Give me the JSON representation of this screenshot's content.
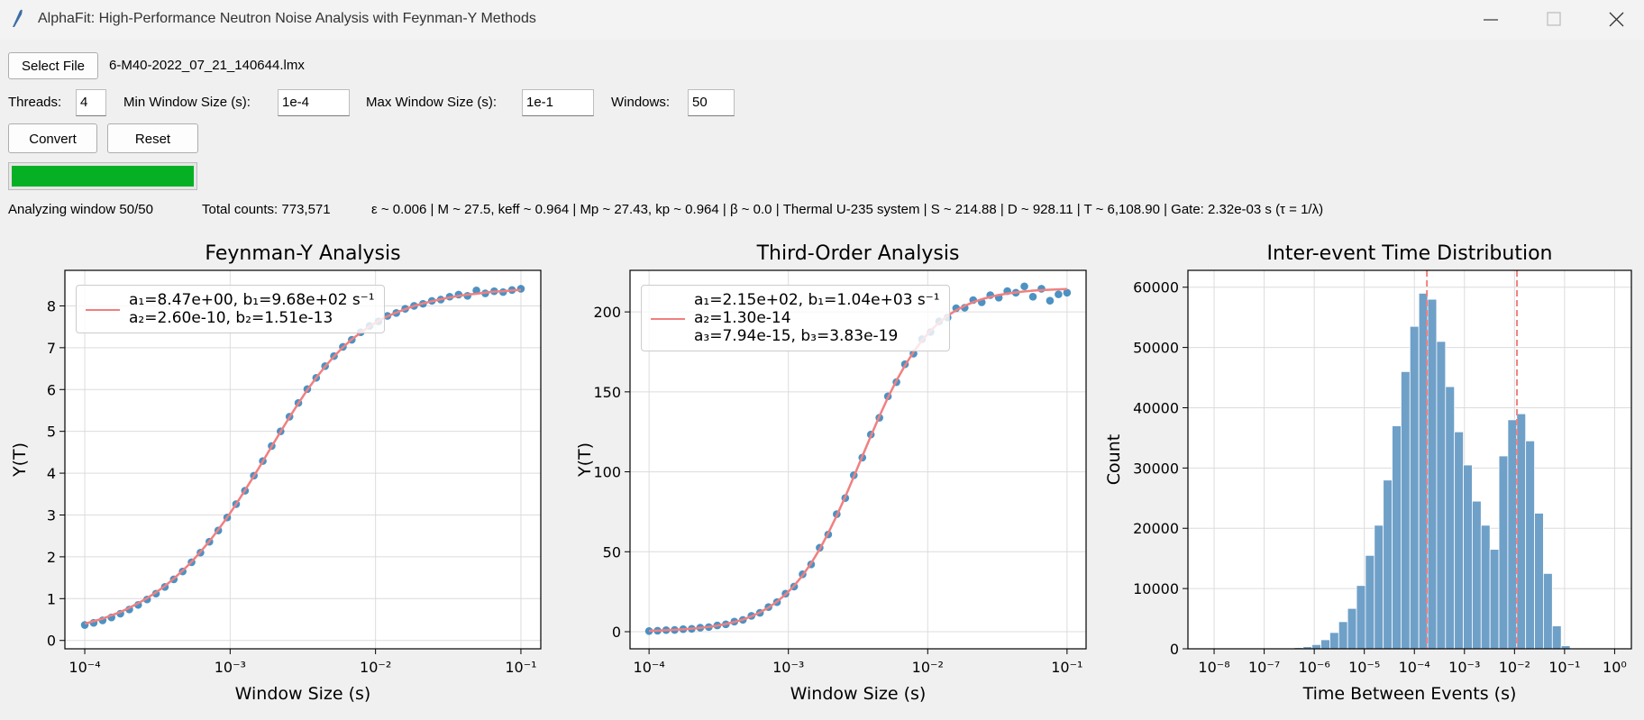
{
  "window": {
    "title": "AlphaFit: High-Performance Neutron Noise Analysis with Feynman-Y Methods"
  },
  "controls": {
    "select_file": "Select File",
    "file_name": "6-M40-2022_07_21_140644.lmx",
    "threads_label": "Threads:",
    "threads": "4",
    "min_window_label": "Min Window Size (s):",
    "min_window": "1e-4",
    "max_window_label": "Max Window Size (s):",
    "max_window": "1e-1",
    "windows_label": "Windows:",
    "windows": "50",
    "convert": "Convert",
    "reset": "Reset",
    "progress": 100
  },
  "status": {
    "window": "Analyzing window 50/50",
    "total_counts": "Total counts: 773,571",
    "summary": "ε ~ 0.006 | M ~ 27.5, keff ~ 0.964 | Mp ~ 27.43, kp ~ 0.964 | β ~ 0.0 | Thermal U-235 system | S ~ 214.88 | D ~ 928.11 | T ~ 6,108.90 | Gate: 2.32e-03 s (τ = 1/λ)"
  },
  "chart_data": [
    {
      "type": "line",
      "title": "Feynman-Y Analysis",
      "x_label": "Window Size (s)",
      "y_label": "Y(T)",
      "xscale": "log",
      "grid": true,
      "legend": "upper left",
      "xlim": [
        7.3e-05,
        0.137
      ],
      "ylim": [
        -0.2,
        8.85
      ],
      "xticks": [
        {
          "value": 0.0001,
          "label": "10⁻⁴"
        },
        {
          "value": 0.001,
          "label": "10⁻³"
        },
        {
          "value": 0.01,
          "label": "10⁻²"
        },
        {
          "value": 0.1,
          "label": "10⁻¹"
        }
      ],
      "yticks": [
        0,
        1,
        2,
        3,
        4,
        5,
        6,
        7,
        8
      ],
      "x": [
        0.0001,
        0.0001151,
        0.0001326,
        0.0001526,
        0.0001758,
        0.0002024,
        0.000233,
        0.0002683,
        0.0003089,
        0.0003556,
        0.0004095,
        0.0004715,
        0.0005429,
        0.0006251,
        0.0007197,
        0.0008286,
        0.0009541,
        0.001099,
        0.001265,
        0.001456,
        0.001677,
        0.001931,
        0.002223,
        0.00256,
        0.002947,
        0.003393,
        0.003907,
        0.004498,
        0.005179,
        0.005964,
        0.006866,
        0.007906,
        0.009103,
        0.01048,
        0.01207,
        0.01389,
        0.016,
        0.01842,
        0.02121,
        0.02442,
        0.02812,
        0.03237,
        0.03728,
        0.04292,
        0.04942,
        0.0569,
        0.06551,
        0.07543,
        0.08685,
        0.1
      ],
      "series": [
        {
          "style": "markers",
          "color": "#1f77b4",
          "values": [
            0.37,
            0.42,
            0.48,
            0.55,
            0.64,
            0.74,
            0.85,
            0.98,
            1.12,
            1.28,
            1.46,
            1.65,
            1.87,
            2.1,
            2.36,
            2.63,
            2.94,
            3.26,
            3.58,
            3.94,
            4.29,
            4.65,
            5.0,
            5.35,
            5.68,
            6.01,
            6.28,
            6.56,
            6.8,
            7.02,
            7.19,
            7.37,
            7.52,
            7.63,
            7.76,
            7.83,
            7.93,
            8.0,
            8.05,
            8.12,
            8.15,
            8.22,
            8.27,
            8.24,
            8.37,
            8.3,
            8.35,
            8.33,
            8.38,
            8.41
          ]
        },
        {
          "style": "line",
          "color": "#f08080",
          "name": "a₁=8.47e+00, b₁=9.68e+02 s⁻¹\na₂=2.60e-10, b₂=1.51e-13",
          "values": [
            0.4,
            0.46,
            0.52,
            0.6,
            0.68,
            0.78,
            0.89,
            1.01,
            1.15,
            1.3,
            1.48,
            1.67,
            1.88,
            2.12,
            2.37,
            2.65,
            2.94,
            3.26,
            3.59,
            3.93,
            4.28,
            4.64,
            4.99,
            5.34,
            5.67,
            5.99,
            6.28,
            6.55,
            6.79,
            7.01,
            7.2,
            7.36,
            7.51,
            7.64,
            7.75,
            7.84,
            7.92,
            8.0,
            8.06,
            8.11,
            8.16,
            8.2,
            8.24,
            8.27,
            8.29,
            8.32,
            8.34,
            8.35,
            8.37,
            8.38
          ]
        }
      ]
    },
    {
      "type": "line",
      "title": "Third-Order Analysis",
      "x_label": "Window Size (s)",
      "y_label": "Y(T)",
      "xscale": "log",
      "grid": true,
      "legend": "upper left",
      "xlim": [
        7.3e-05,
        0.137
      ],
      "ylim": [
        -10.7,
        226
      ],
      "xticks": [
        {
          "value": 0.0001,
          "label": "10⁻⁴"
        },
        {
          "value": 0.001,
          "label": "10⁻³"
        },
        {
          "value": 0.01,
          "label": "10⁻²"
        },
        {
          "value": 0.1,
          "label": "10⁻¹"
        }
      ],
      "yticks": [
        0,
        50,
        100,
        150,
        200
      ],
      "x": [
        0.0001,
        0.0001151,
        0.0001326,
        0.0001526,
        0.0001758,
        0.0002024,
        0.000233,
        0.0002683,
        0.0003089,
        0.0003556,
        0.0004095,
        0.0004715,
        0.0005429,
        0.0006251,
        0.0007197,
        0.0008286,
        0.0009541,
        0.001099,
        0.001265,
        0.001456,
        0.001677,
        0.001931,
        0.002223,
        0.00256,
        0.002947,
        0.003393,
        0.003907,
        0.004498,
        0.005179,
        0.005964,
        0.006866,
        0.007906,
        0.009103,
        0.01048,
        0.01207,
        0.01389,
        0.016,
        0.01842,
        0.02121,
        0.02442,
        0.02812,
        0.03237,
        0.03728,
        0.04292,
        0.04942,
        0.0569,
        0.06551,
        0.07543,
        0.08685,
        0.1
      ],
      "series": [
        {
          "style": "markers",
          "color": "#1f77b4",
          "values": [
            0.4,
            0.6,
            1.0,
            1.1,
            1.6,
            1.8,
            2.5,
            2.9,
            3.9,
            4.6,
            6.3,
            7.4,
            9.9,
            11.8,
            15.4,
            18.5,
            23.8,
            28.2,
            35.9,
            42.1,
            52.5,
            60.8,
            73.5,
            83.6,
            97.8,
            108.9,
            123.3,
            133.8,
            147.2,
            156.1,
            167.3,
            173.9,
            183.0,
            187.4,
            194.1,
            196.5,
            202.3,
            202.6,
            207.4,
            206.0,
            210.5,
            208.9,
            213.0,
            212.0,
            216.0,
            209.5,
            214.5,
            207.0,
            211.0,
            212.0
          ]
        },
        {
          "style": "line",
          "color": "#f08080",
          "name": "a₁=2.15e+02, b₁=1.04e+03 s⁻¹\na₂=1.30e-14\na₃=7.94e-15, b₃=3.83e-19",
          "values": [
            0.6,
            0.7,
            0.9,
            1.2,
            1.5,
            1.9,
            2.4,
            3.0,
            3.8,
            4.8,
            6.1,
            7.6,
            9.6,
            12.1,
            15.1,
            18.8,
            23.3,
            28.7,
            35.2,
            42.8,
            51.6,
            61.6,
            72.6,
            84.4,
            96.9,
            109.7,
            122.4,
            134.7,
            146.4,
            157.0,
            166.5,
            174.9,
            182.2,
            188.3,
            193.3,
            197.6,
            201.0,
            203.8,
            206.1,
            207.9,
            209.4,
            210.6,
            211.5,
            212.2,
            212.8,
            213.3,
            213.6,
            213.9,
            214.1,
            214.3
          ]
        }
      ]
    },
    {
      "type": "histogram",
      "title": "Inter-event Time Distribution",
      "x_label": "Time Between Events (s)",
      "y_label": "Count",
      "xscale": "log",
      "grid": true,
      "color": "#6fa0c8",
      "xlim": [
        3e-09,
        2.16
      ],
      "ylim": [
        0,
        62800
      ],
      "xticks": [
        {
          "value": 1e-08,
          "label": "10⁻⁸"
        },
        {
          "value": 1e-07,
          "label": "10⁻⁷"
        },
        {
          "value": 1e-06,
          "label": "10⁻⁶"
        },
        {
          "value": 1e-05,
          "label": "10⁻⁵"
        },
        {
          "value": 0.0001,
          "label": "10⁻⁴"
        },
        {
          "value": 0.001,
          "label": "10⁻³"
        },
        {
          "value": 0.01,
          "label": "10⁻²"
        },
        {
          "value": 0.1,
          "label": "10⁻¹"
        },
        {
          "value": 1,
          "label": "10⁰"
        }
      ],
      "yticks": [
        0,
        10000,
        20000,
        30000,
        40000,
        50000,
        60000
      ],
      "bins": [
        1e-08,
        1.506e-08,
        2.268e-08,
        3.415e-08,
        5.144e-08,
        7.743e-08,
        1.166e-07,
        1.756e-07,
        2.644e-07,
        3.981e-07,
        5.995e-07,
        9.027e-07,
        1.359e-06,
        2.047e-06,
        3.082e-06,
        4.642e-06,
        6.989e-06,
        1.052e-05,
        1.585e-05,
        2.387e-05,
        3.594e-05,
        5.412e-05,
        8.15e-05,
        0.0001227,
        0.0001848,
        0.0002783,
        0.000419,
        0.000631,
        0.0009502,
        0.001431,
        0.002154,
        0.003244,
        0.004885,
        0.007356,
        0.01108,
        0.01668,
        0.02512,
        0.03782,
        0.05696,
        0.08577,
        0.1292,
        0.1945,
        0.2929,
        0.441,
        0.6641,
        1
      ],
      "values": [
        0,
        0,
        0,
        0,
        0,
        0,
        0,
        50,
        100,
        200,
        350,
        700,
        1500,
        2700,
        4500,
        6700,
        10500,
        15500,
        20500,
        28000,
        37000,
        46000,
        53500,
        59000,
        58000,
        51000,
        43500,
        36000,
        30500,
        24500,
        20500,
        16500,
        32000,
        38000,
        39000,
        34500,
        22500,
        12500,
        3800,
        500,
        0,
        0,
        0,
        0,
        0
      ],
      "vlines": [
        {
          "value": 0.000178,
          "color": "#f08080"
        },
        {
          "value": 0.0112,
          "color": "#f08080"
        }
      ]
    }
  ]
}
